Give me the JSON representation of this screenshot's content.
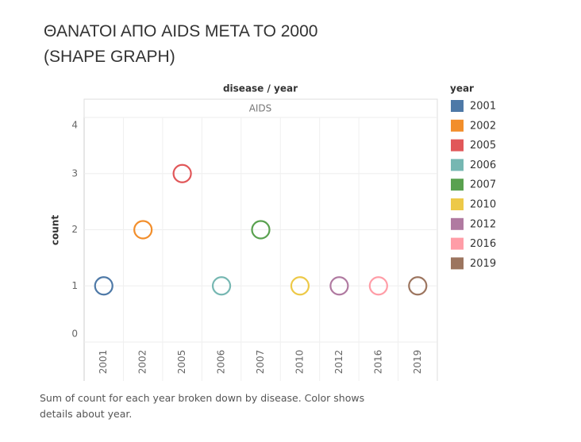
{
  "chart_data": {
    "type": "shape",
    "title": "ΘΑΝΑΤΟΙ ΑΠΟ AIDS ΜΕΤΑ  ΤΟ 2000\n(SHAPE GRAPH)",
    "column_header": "disease / year",
    "panel": "AIDS",
    "y_label": "count",
    "legend_title": "year",
    "caption": "Sum of count for each year broken down by disease.  Color shows details about year.",
    "categories": [
      "2001",
      "2002",
      "2005",
      "2006",
      "2007",
      "2010",
      "2012",
      "2016",
      "2019"
    ],
    "values": [
      1,
      2,
      3,
      1,
      2,
      1,
      1,
      1,
      1
    ],
    "colors": [
      "#4e79a7",
      "#f28e2b",
      "#e15759",
      "#76b7b2",
      "#59a14f",
      "#edc948",
      "#b07aa1",
      "#ff9da7",
      "#9c755f"
    ],
    "ylim": [
      0,
      4
    ],
    "yticks": [
      0,
      1,
      2,
      3,
      4
    ],
    "grid": true
  }
}
